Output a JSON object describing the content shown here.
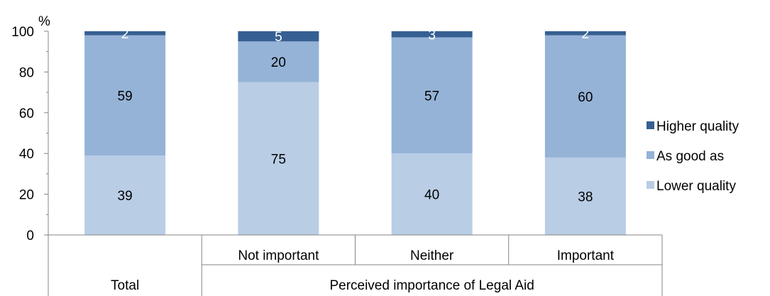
{
  "chart_data": {
    "type": "bar",
    "stacked": true,
    "ylabel": "%",
    "ylim": [
      0,
      100
    ],
    "yticks": [
      0,
      20,
      40,
      60,
      80,
      100
    ],
    "grid": false,
    "legend_position": "right",
    "categories": [
      "",
      "Not important",
      "Neither",
      "Important"
    ],
    "group_labels": [
      {
        "label": "Total",
        "categories": [
          ""
        ]
      },
      {
        "label": "Perceived importance of Legal Aid",
        "categories": [
          "Not important",
          "Neither",
          "Important"
        ]
      }
    ],
    "series": [
      {
        "name": "Lower quality",
        "color": "#b9cde5",
        "values": [
          39,
          75,
          40,
          38
        ]
      },
      {
        "name": "As good as",
        "color": "#95b3d7",
        "values": [
          59,
          20,
          57,
          60
        ]
      },
      {
        "name": "Higher quality",
        "color": "#366092",
        "values": [
          2,
          5,
          3,
          2
        ]
      }
    ],
    "label_colors": {
      "Lower quality": "#000000",
      "As good as": "#000000",
      "Higher quality": "#ffffff"
    }
  }
}
